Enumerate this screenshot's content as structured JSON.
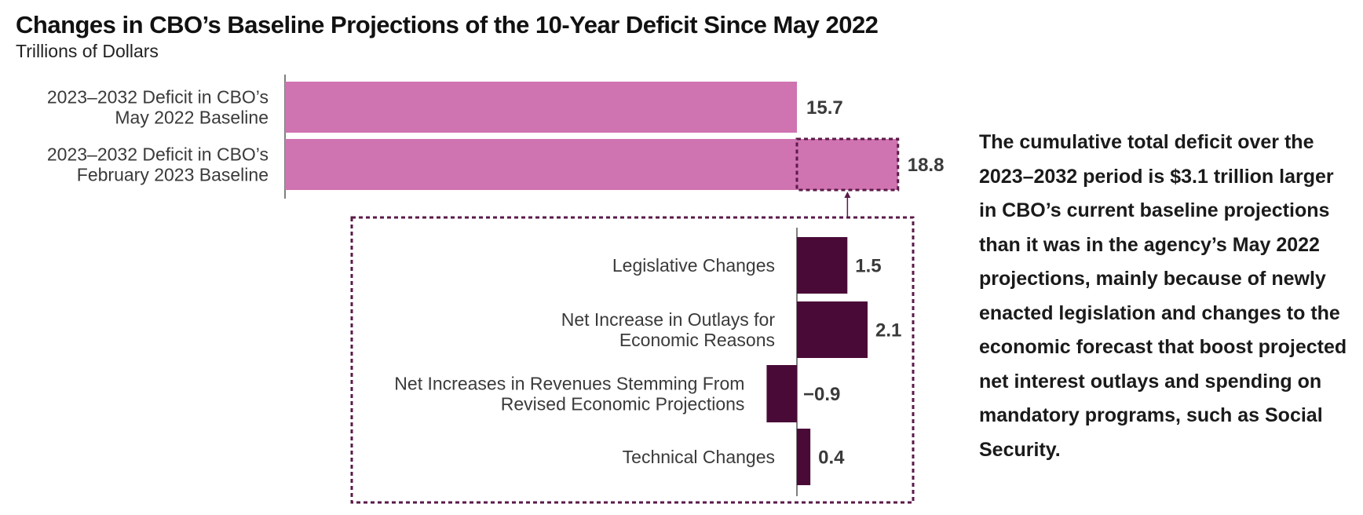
{
  "title": "Changes in CBO’s Baseline Projections of the 10-Year Deficit Since May 2022",
  "subtitle": "Trillions of Dollars",
  "note": "The cumulative total deficit over the 2023–2032 period is $3.1 trillion larger in CBO’s current baseline projections than it was in the agency’s May 2022 projections, mainly because of newly enacted legislation and changes to the economic forecast that boost projected net interest outlays and spending on mandatory programs, such as Social Security.",
  "colors": {
    "baseline": "#d073b1",
    "change": "#4a0a37",
    "dashed": "#5a1a48",
    "text": "#3a3a3a"
  },
  "chart_data": [
    {
      "type": "bar",
      "orientation": "horizontal",
      "categories": [
        [
          "2023–2032 Deficit in CBO’s",
          "May 2022 Baseline"
        ],
        [
          "2023–2032 Deficit in CBO’s",
          "February 2023 Baseline"
        ]
      ],
      "values": [
        15.7,
        18.8
      ],
      "value_labels": [
        "15.7",
        "18.8"
      ]
    },
    {
      "type": "bar",
      "orientation": "horizontal",
      "categories": [
        [
          "Legislative Changes"
        ],
        [
          "Net Increase in Outlays for",
          "Economic Reasons"
        ],
        [
          "Net Increases in Revenues Stemming From",
          "Revised Economic Projections"
        ],
        [
          "Technical Changes"
        ]
      ],
      "values": [
        1.5,
        2.1,
        -0.9,
        0.4
      ],
      "value_labels": [
        "1.5",
        "2.1",
        "−0.9",
        "0.4"
      ]
    }
  ]
}
